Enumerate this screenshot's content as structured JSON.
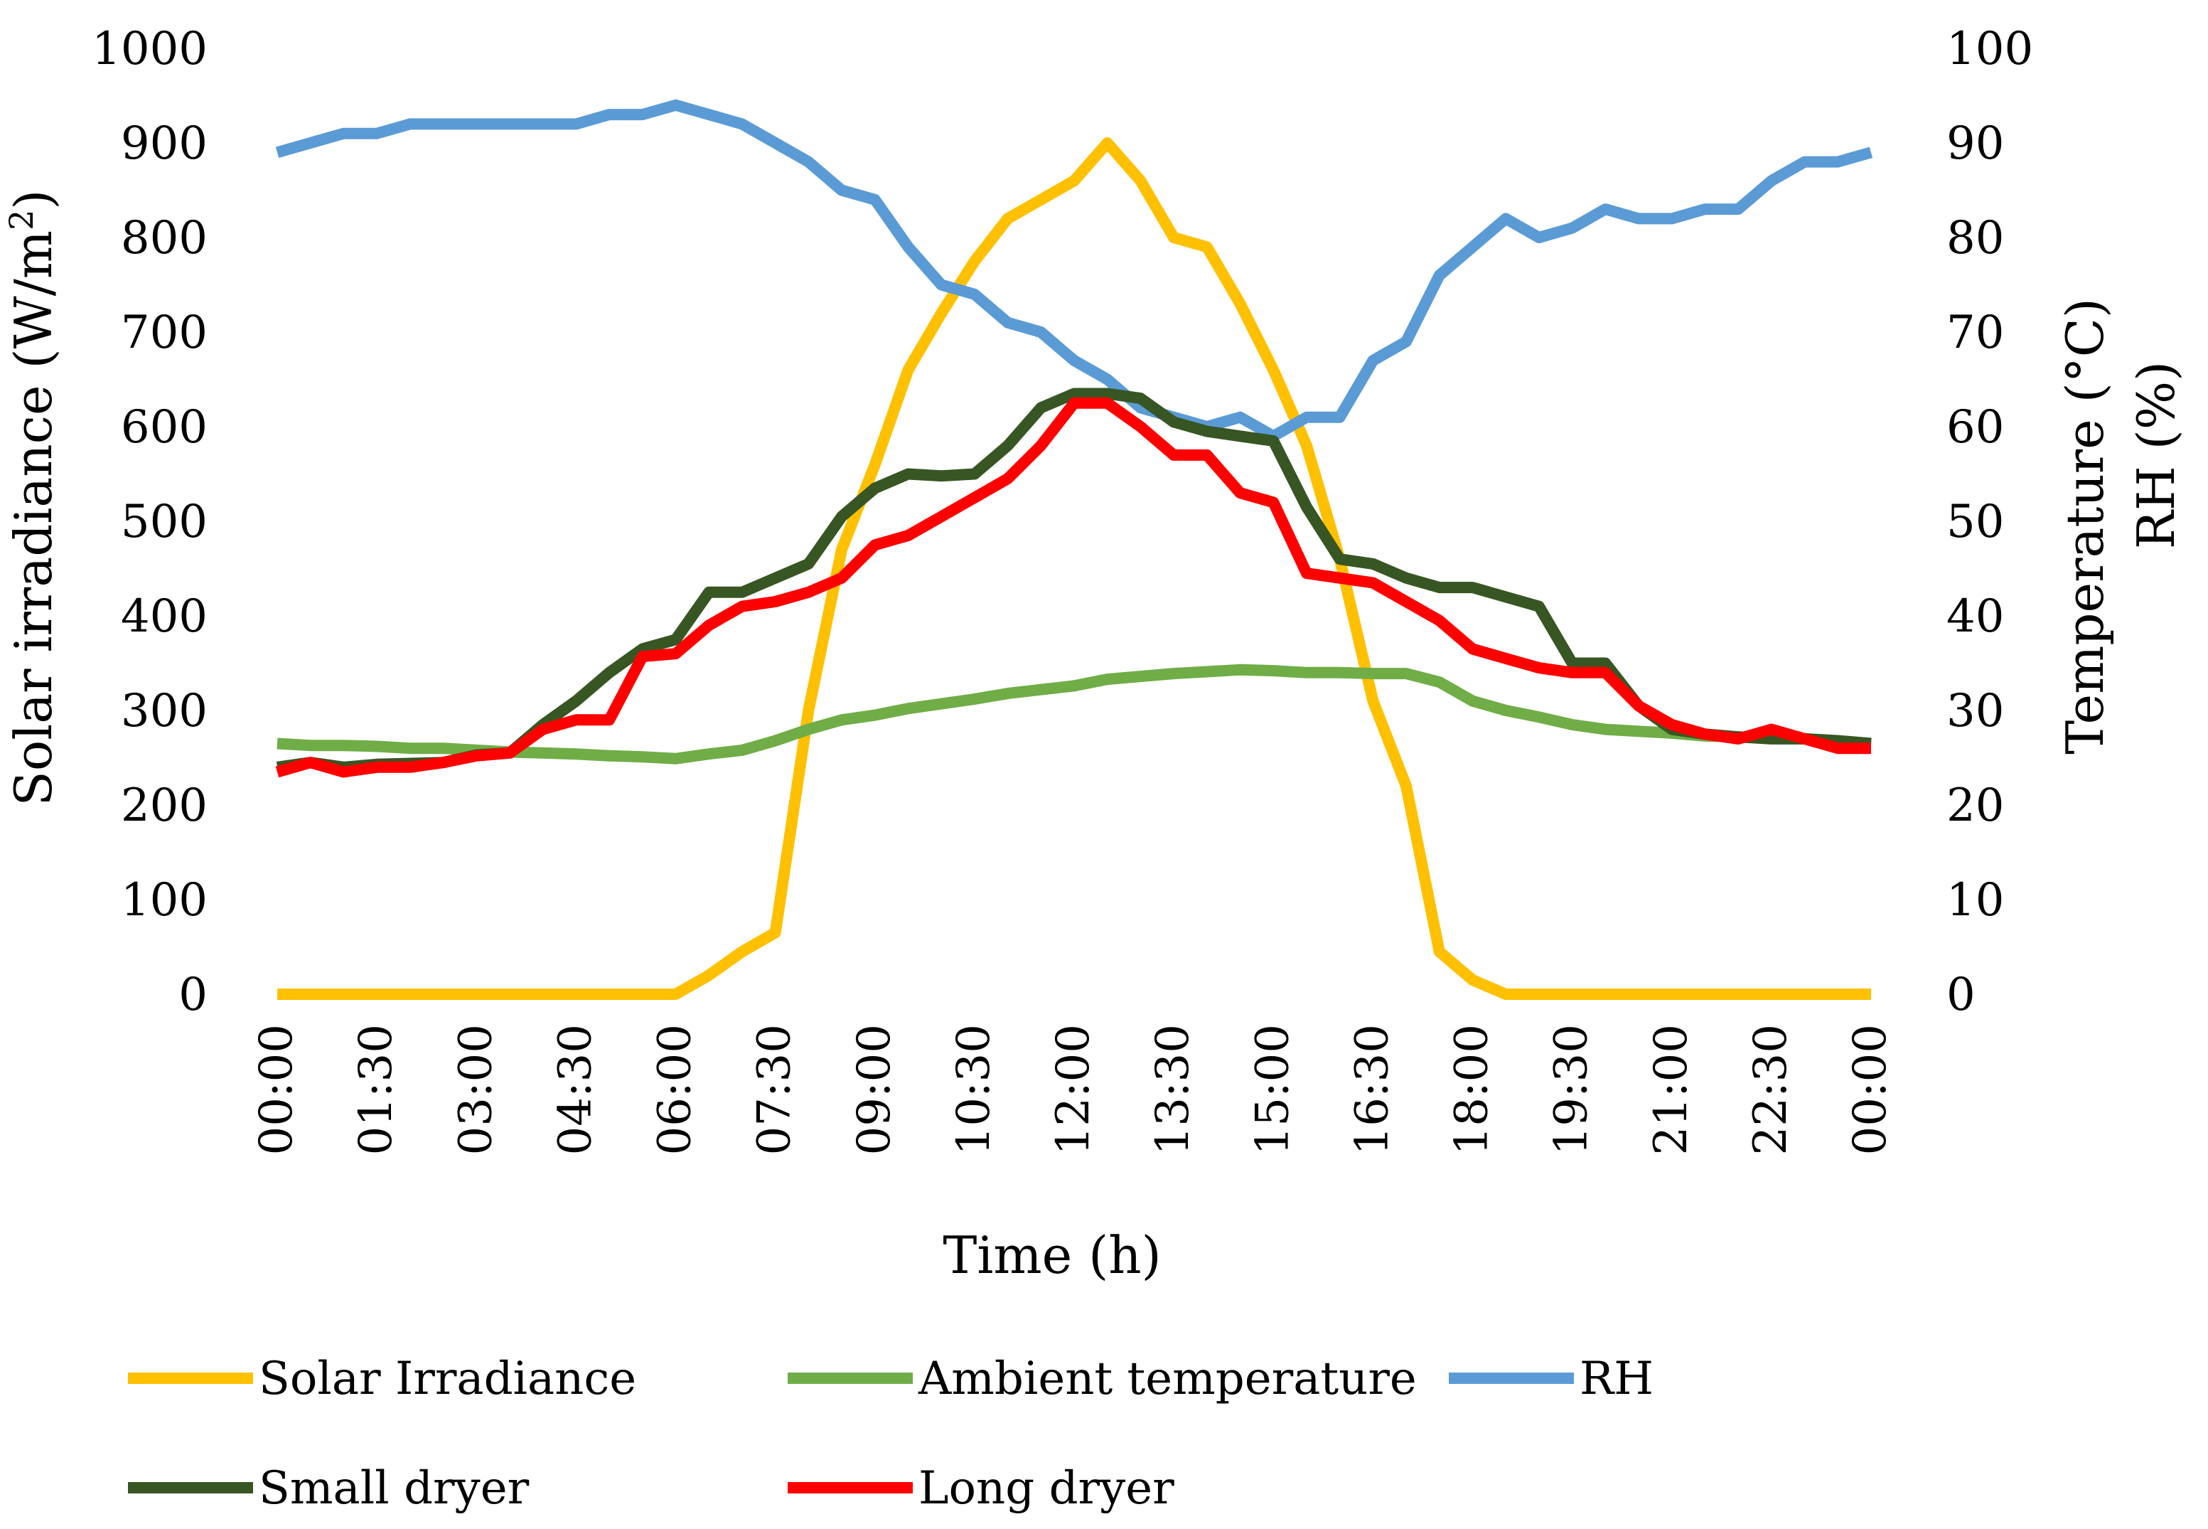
{
  "chart_data": {
    "type": "line",
    "title": "",
    "xlabel": "Time (h)",
    "ylabel": "Solar irradiance (W/m²)",
    "ylabel_prefix": "Solar irradiance (W/m",
    "ylabel_sup": "2",
    "ylabel_suffix": ")",
    "y2label": "Temperature (°C)",
    "y3label": "RH (%)",
    "ylim": [
      0,
      1000
    ],
    "y2lim": [
      0,
      100
    ],
    "yticks": [
      0,
      100,
      200,
      300,
      400,
      500,
      600,
      700,
      800,
      900,
      1000
    ],
    "y2ticks": [
      0,
      10,
      20,
      30,
      40,
      50,
      60,
      70,
      80,
      90,
      100
    ],
    "x": [
      "00:00",
      "00:30",
      "01:00",
      "01:30",
      "02:00",
      "02:30",
      "03:00",
      "03:30",
      "04:00",
      "04:30",
      "05:00",
      "05:30",
      "06:00",
      "06:30",
      "07:00",
      "07:30",
      "08:00",
      "08:30",
      "09:00",
      "09:30",
      "10:00",
      "10:30",
      "11:00",
      "11:30",
      "12:00",
      "12:30",
      "13:00",
      "13:30",
      "14:00",
      "14:30",
      "15:00",
      "15:30",
      "16:00",
      "16:30",
      "17:00",
      "17:30",
      "18:00",
      "18:30",
      "19:00",
      "19:30",
      "20:00",
      "20:30",
      "21:00",
      "21:30",
      "22:00",
      "22:30",
      "23:00",
      "23:30",
      "00:00"
    ],
    "xtick_labels": [
      "00:00",
      "01:30",
      "03:00",
      "04:30",
      "06:00",
      "07:30",
      "09:00",
      "10:30",
      "12:00",
      "13:30",
      "15:00",
      "16:30",
      "18:00",
      "19:30",
      "21:00",
      "22:30",
      "00:00"
    ],
    "xtick_every": 3,
    "series": [
      {
        "name": "Solar Irradiance",
        "axis": "left",
        "color": "#FFC000",
        "values": [
          0,
          0,
          0,
          0,
          0,
          0,
          0,
          0,
          0,
          0,
          0,
          0,
          0,
          20,
          45,
          65,
          300,
          470,
          560,
          660,
          720,
          775,
          820,
          840,
          860,
          900,
          860,
          800,
          790,
          730,
          660,
          580,
          460,
          310,
          220,
          45,
          15,
          0,
          0,
          0,
          0,
          0,
          0,
          0,
          0,
          0,
          0,
          0,
          0
        ]
      },
      {
        "name": "Ambient temperature",
        "axis": "right",
        "color": "#70AD47",
        "values": [
          26.5,
          26.3,
          26.3,
          26.2,
          26,
          26,
          25.8,
          25.6,
          25.5,
          25.4,
          25.2,
          25.1,
          24.9,
          25.4,
          25.8,
          26.8,
          28,
          29,
          29.5,
          30.2,
          30.7,
          31.2,
          31.8,
          32.2,
          32.6,
          33.3,
          33.6,
          33.9,
          34.1,
          34.3,
          34.2,
          34,
          34,
          33.9,
          33.9,
          33,
          31,
          30,
          29.3,
          28.5,
          28,
          27.8,
          27.6,
          27.3,
          27.2,
          27.1,
          27,
          26.8,
          26.5
        ]
      },
      {
        "name": "RH",
        "axis": "right",
        "color": "#5B9BD5",
        "values": [
          89,
          90,
          91,
          91,
          92,
          92,
          92,
          92,
          92,
          92,
          93,
          93,
          94,
          93,
          92,
          90,
          88,
          85,
          84,
          79,
          75,
          74,
          71,
          70,
          67,
          65,
          62,
          61,
          60,
          61,
          59,
          61,
          61,
          67,
          69,
          76,
          79,
          82,
          80,
          81,
          83,
          82,
          82,
          83,
          83,
          86,
          88,
          88,
          89
        ]
      },
      {
        "name": "Small dryer",
        "axis": "right",
        "color": "#375623",
        "values": [
          24,
          24.5,
          24,
          24.3,
          24.4,
          24.5,
          25.3,
          25.5,
          28.5,
          31,
          34,
          36.5,
          37.5,
          42.5,
          42.5,
          44,
          45.5,
          50.5,
          53.5,
          55,
          54.8,
          55,
          58,
          62,
          63.5,
          63.5,
          63,
          60.5,
          59.5,
          59,
          58.5,
          51.5,
          46,
          45.5,
          44,
          43,
          43,
          42,
          41,
          35,
          35,
          30.5,
          28,
          27.5,
          27.2,
          27,
          27,
          26.8,
          26.5
        ]
      },
      {
        "name": "Long dryer",
        "axis": "right",
        "color": "#FF0000",
        "values": [
          23.5,
          24.5,
          23.5,
          24,
          24,
          24.5,
          25.2,
          25.5,
          28,
          29,
          29,
          35.7,
          36,
          39,
          41,
          41.5,
          42.5,
          44,
          47.5,
          48.5,
          50.5,
          52.5,
          54.5,
          58,
          62.5,
          62.5,
          60,
          57,
          57,
          53,
          52,
          44.5,
          44,
          43.5,
          41.5,
          39.5,
          36.5,
          35.5,
          34.5,
          34,
          34,
          30.5,
          28.5,
          27.5,
          27,
          28,
          27,
          26,
          26
        ]
      }
    ],
    "legend_position": "bottom"
  }
}
